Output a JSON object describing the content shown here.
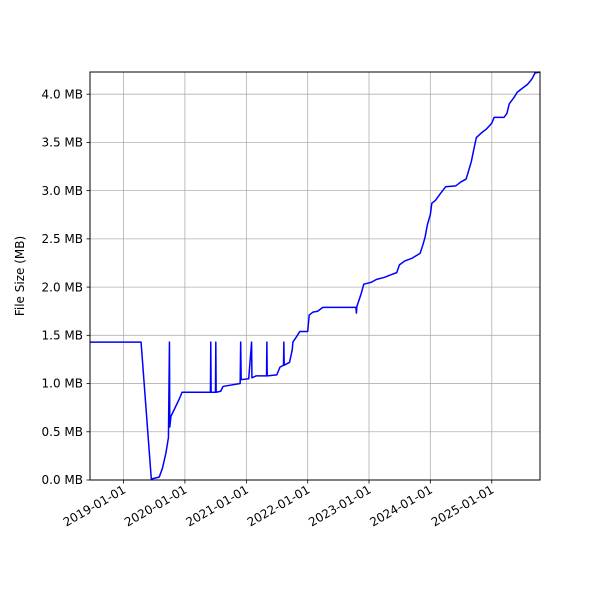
{
  "chart_data": {
    "type": "line",
    "title": "",
    "xlabel": "",
    "ylabel": "File Size (MB)",
    "grid": true,
    "legend": "none",
    "x_type": "date",
    "xlim": [
      "2018-06-15",
      "2025-10-15"
    ],
    "ylim": [
      0,
      4.23
    ],
    "x_ticks": [
      "2019-01-01",
      "2020-01-01",
      "2021-01-01",
      "2022-01-01",
      "2023-01-01",
      "2024-01-01",
      "2025-01-01"
    ],
    "y_ticks": [
      {
        "value": 0.0,
        "label": "0.0 MB"
      },
      {
        "value": 0.5,
        "label": "0.5 MB"
      },
      {
        "value": 1.0,
        "label": "1.0 MB"
      },
      {
        "value": 1.5,
        "label": "1.5 MB"
      },
      {
        "value": 2.0,
        "label": "2.0 MB"
      },
      {
        "value": 2.5,
        "label": "2.5 MB"
      },
      {
        "value": 3.0,
        "label": "3.0 MB"
      },
      {
        "value": 3.5,
        "label": "3.5 MB"
      },
      {
        "value": 4.0,
        "label": "4.0 MB"
      }
    ],
    "series": [
      {
        "color": "#0000ff",
        "points": [
          [
            "2018-06-15",
            1.43
          ],
          [
            "2019-04-15",
            1.43
          ],
          [
            "2019-06-15",
            0.01
          ],
          [
            "2019-08-01",
            0.03
          ],
          [
            "2019-08-20",
            0.12
          ],
          [
            "2019-09-10",
            0.28
          ],
          [
            "2019-09-25",
            0.44
          ],
          [
            "2019-10-01",
            1.43
          ],
          [
            "2019-10-03",
            0.55
          ],
          [
            "2019-10-10",
            0.66
          ],
          [
            "2019-11-01",
            0.74
          ],
          [
            "2019-12-01",
            0.85
          ],
          [
            "2019-12-15",
            0.91
          ],
          [
            "2020-06-01",
            0.91
          ],
          [
            "2020-06-03",
            1.43
          ],
          [
            "2020-06-05",
            0.91
          ],
          [
            "2020-07-01",
            0.91
          ],
          [
            "2020-07-03",
            1.43
          ],
          [
            "2020-07-05",
            0.91
          ],
          [
            "2020-08-01",
            0.92
          ],
          [
            "2020-08-15",
            0.97
          ],
          [
            "2020-11-25",
            1.0
          ],
          [
            "2020-11-28",
            1.43
          ],
          [
            "2020-12-01",
            1.04
          ],
          [
            "2021-01-15",
            1.05
          ],
          [
            "2021-02-01",
            1.43
          ],
          [
            "2021-02-03",
            1.06
          ],
          [
            "2021-03-01",
            1.08
          ],
          [
            "2021-05-01",
            1.08
          ],
          [
            "2021-05-03",
            1.43
          ],
          [
            "2021-05-05",
            1.08
          ],
          [
            "2021-07-01",
            1.09
          ],
          [
            "2021-07-20",
            1.17
          ],
          [
            "2021-08-10",
            1.19
          ],
          [
            "2021-08-12",
            1.43
          ],
          [
            "2021-08-14",
            1.19
          ],
          [
            "2021-09-15",
            1.22
          ],
          [
            "2021-10-01",
            1.35
          ],
          [
            "2021-10-05",
            1.43
          ],
          [
            "2021-11-01",
            1.5
          ],
          [
            "2021-11-15",
            1.54
          ],
          [
            "2022-01-01",
            1.54
          ],
          [
            "2022-01-10",
            1.71
          ],
          [
            "2022-02-01",
            1.74
          ],
          [
            "2022-03-01",
            1.75
          ],
          [
            "2022-04-01",
            1.79
          ],
          [
            "2022-10-15",
            1.79
          ],
          [
            "2022-10-18",
            1.73
          ],
          [
            "2022-10-21",
            1.8
          ],
          [
            "2022-11-15",
            1.93
          ],
          [
            "2022-12-01",
            2.03
          ],
          [
            "2023-01-15",
            2.05
          ],
          [
            "2023-02-15",
            2.08
          ],
          [
            "2023-04-01",
            2.1
          ],
          [
            "2023-05-15",
            2.13
          ],
          [
            "2023-06-15",
            2.15
          ],
          [
            "2023-07-01",
            2.23
          ],
          [
            "2023-08-01",
            2.27
          ],
          [
            "2023-09-15",
            2.3
          ],
          [
            "2023-11-01",
            2.35
          ],
          [
            "2023-11-20",
            2.45
          ],
          [
            "2023-12-01",
            2.52
          ],
          [
            "2023-12-15",
            2.65
          ],
          [
            "2024-01-01",
            2.75
          ],
          [
            "2024-01-10",
            2.87
          ],
          [
            "2024-02-01",
            2.9
          ],
          [
            "2024-03-01",
            2.97
          ],
          [
            "2024-04-01",
            3.04
          ],
          [
            "2024-06-01",
            3.05
          ],
          [
            "2024-07-01",
            3.09
          ],
          [
            "2024-08-01",
            3.12
          ],
          [
            "2024-08-15",
            3.2
          ],
          [
            "2024-09-01",
            3.3
          ],
          [
            "2024-09-15",
            3.42
          ],
          [
            "2024-10-01",
            3.55
          ],
          [
            "2024-11-01",
            3.6
          ],
          [
            "2024-12-01",
            3.64
          ],
          [
            "2025-01-01",
            3.7
          ],
          [
            "2025-01-15",
            3.76
          ],
          [
            "2025-03-15",
            3.76
          ],
          [
            "2025-04-01",
            3.8
          ],
          [
            "2025-04-15",
            3.9
          ],
          [
            "2025-05-15",
            3.97
          ],
          [
            "2025-06-01",
            4.02
          ],
          [
            "2025-07-01",
            4.06
          ],
          [
            "2025-08-01",
            4.1
          ],
          [
            "2025-08-20",
            4.14
          ],
          [
            "2025-09-01",
            4.17
          ],
          [
            "2025-09-15",
            4.22
          ],
          [
            "2025-10-15",
            4.23
          ]
        ]
      }
    ]
  }
}
